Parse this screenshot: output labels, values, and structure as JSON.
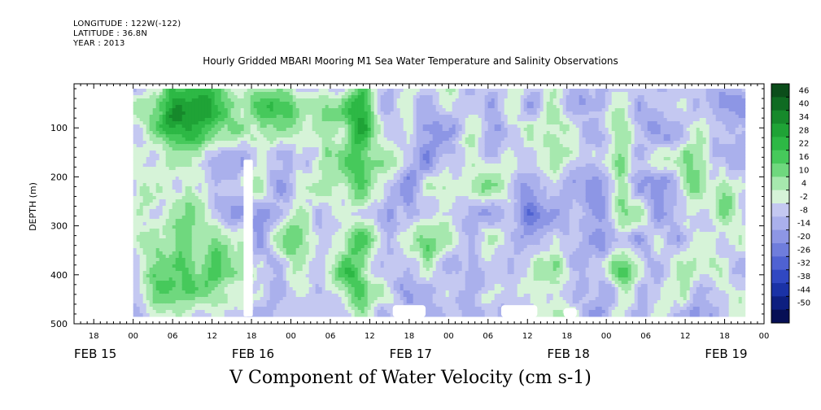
{
  "header": {
    "longitude": "LONGITUDE : 122W(-122)",
    "latitude": "LATITUDE : 36.8N",
    "year": "YEAR : 2013"
  },
  "chart_data": {
    "type": "heatmap",
    "title": "Hourly Gridded MBARI Mooring M1 Sea Water Temperature and Salinity Observations",
    "xlabel": "",
    "ylabel": "DEPTH (m)",
    "caption": "V Component of Water Velocity (cm s-1)",
    "x_time_range_hours": [
      -9,
      96
    ],
    "data_start_hour": 0,
    "data_end_hour": 93,
    "ylim": [
      500,
      10
    ],
    "data_depth_range_m": [
      20,
      485
    ],
    "x_hour_ticks": [
      {
        "h": -6,
        "label": "18"
      },
      {
        "h": 0,
        "label": "00"
      },
      {
        "h": 6,
        "label": "06"
      },
      {
        "h": 12,
        "label": "12"
      },
      {
        "h": 18,
        "label": "18"
      },
      {
        "h": 24,
        "label": "00"
      },
      {
        "h": 30,
        "label": "06"
      },
      {
        "h": 36,
        "label": "12"
      },
      {
        "h": 42,
        "label": "18"
      },
      {
        "h": 48,
        "label": "00"
      },
      {
        "h": 54,
        "label": "06"
      },
      {
        "h": 60,
        "label": "12"
      },
      {
        "h": 66,
        "label": "18"
      },
      {
        "h": 72,
        "label": "00"
      },
      {
        "h": 78,
        "label": "06"
      },
      {
        "h": 84,
        "label": "12"
      },
      {
        "h": 90,
        "label": "18"
      },
      {
        "h": 96,
        "label": "00"
      }
    ],
    "x_date_labels": [
      {
        "h": -9,
        "label": "FEB 15"
      },
      {
        "h": 15,
        "label": "FEB 16"
      },
      {
        "h": 39,
        "label": "FEB 17"
      },
      {
        "h": 63,
        "label": "FEB 18"
      },
      {
        "h": 87,
        "label": "FEB 19"
      }
    ],
    "y_ticks": [
      {
        "v": 100,
        "label": "100"
      },
      {
        "v": 200,
        "label": "200"
      },
      {
        "v": 300,
        "label": "300"
      },
      {
        "v": 400,
        "label": "400"
      },
      {
        "v": 500,
        "label": "500"
      }
    ],
    "colorbar": {
      "levels": [
        46,
        40,
        34,
        28,
        22,
        16,
        10,
        4,
        -2,
        -8,
        -14,
        -20,
        -26,
        -32,
        -38,
        -44,
        -50
      ],
      "label_strings": [
        "46",
        "40",
        "34",
        "28",
        "22",
        "16",
        "10",
        "4",
        "-2",
        "-8",
        "-14",
        "-20",
        "-26",
        "-32",
        "-38",
        "-44",
        "-50"
      ],
      "colors": [
        "#0b4d1a",
        "#0f6b22",
        "#16892b",
        "#1fa336",
        "#2db845",
        "#46c95b",
        "#6fd87e",
        "#a6e8ae",
        "#d6f3d8",
        "#c4c8f1",
        "#aab0ec",
        "#8d96e5",
        "#6f7ddc",
        "#4f62d2",
        "#3048c2",
        "#1a32a6",
        "#0d1f80",
        "#060f55"
      ]
    },
    "missing_data": [
      {
        "type": "column",
        "hour_start": 16.8,
        "hour_end": 18.2,
        "depth_top": 165,
        "depth_bottom": 485
      },
      {
        "type": "bottom",
        "hour_start": 39.5,
        "hour_end": 44.5,
        "depth_top": 462
      },
      {
        "type": "bottom",
        "hour_start": 56,
        "hour_end": 61.5,
        "depth_top": 462
      },
      {
        "type": "bottom",
        "hour_start": 65.5,
        "hour_end": 67.5,
        "depth_top": 468
      }
    ],
    "features": [
      {
        "hour": 10,
        "depth": 60,
        "radius_h": 5,
        "radius_d": 80,
        "value": 26
      },
      {
        "hour": 4,
        "depth": 80,
        "radius_h": 4,
        "radius_d": 60,
        "value": 14
      },
      {
        "hour": 2,
        "depth": 230,
        "radius_h": 3,
        "radius_d": 60,
        "value": 8
      },
      {
        "hour": 8,
        "depth": 300,
        "radius_h": 3,
        "radius_d": 120,
        "value": 10
      },
      {
        "hour": 6,
        "depth": 420,
        "radius_h": 5,
        "radius_d": 70,
        "value": 12
      },
      {
        "hour": 12.5,
        "depth": 350,
        "radius_h": 2.5,
        "radius_d": 90,
        "value": 8
      },
      {
        "hour": 22,
        "depth": 60,
        "radius_h": 4,
        "radius_d": 60,
        "value": 12
      },
      {
        "hour": 24,
        "depth": 330,
        "radius_h": 2,
        "radius_d": 80,
        "value": 6
      },
      {
        "hour": 34.5,
        "depth": 100,
        "radius_h": 2.5,
        "radius_d": 140,
        "value": 20
      },
      {
        "hour": 33.5,
        "depth": 400,
        "radius_h": 3,
        "radius_d": 110,
        "value": 18
      },
      {
        "hour": 31,
        "depth": 150,
        "radius_h": 3,
        "radius_d": 120,
        "value": 6
      },
      {
        "hour": 42,
        "depth": 200,
        "radius_h": 2,
        "radius_d": 80,
        "value": -14
      },
      {
        "hour": 45,
        "depth": 360,
        "radius_h": 2.5,
        "radius_d": 60,
        "value": 6
      },
      {
        "hour": 52,
        "depth": 90,
        "radius_h": 2,
        "radius_d": 70,
        "value": 4
      },
      {
        "hour": 55,
        "depth": 200,
        "radius_h": 3,
        "radius_d": 50,
        "value": 8
      },
      {
        "hour": 60,
        "depth": 260,
        "radius_h": 2,
        "radius_d": 60,
        "value": -18
      },
      {
        "hour": 64,
        "depth": 90,
        "radius_h": 2,
        "radius_d": 70,
        "value": 6
      },
      {
        "hour": 64,
        "depth": 420,
        "radius_h": 3,
        "radius_d": 60,
        "value": 6
      },
      {
        "hour": 70,
        "depth": 180,
        "radius_h": 2,
        "radius_d": 90,
        "value": -12
      },
      {
        "hour": 74.5,
        "depth": 210,
        "radius_h": 1.5,
        "radius_d": 140,
        "value": 10
      },
      {
        "hour": 75,
        "depth": 420,
        "radius_h": 2,
        "radius_d": 70,
        "value": 10
      },
      {
        "hour": 85,
        "depth": 200,
        "radius_h": 2,
        "radius_d": 90,
        "value": 10
      },
      {
        "hour": 86,
        "depth": 390,
        "radius_h": 3,
        "radius_d": 50,
        "value": 6
      },
      {
        "hour": 90,
        "depth": 240,
        "radius_h": 2,
        "radius_d": 60,
        "value": 8
      },
      {
        "hour": 80,
        "depth": 120,
        "radius_h": 3,
        "radius_d": 60,
        "value": -10
      }
    ]
  }
}
